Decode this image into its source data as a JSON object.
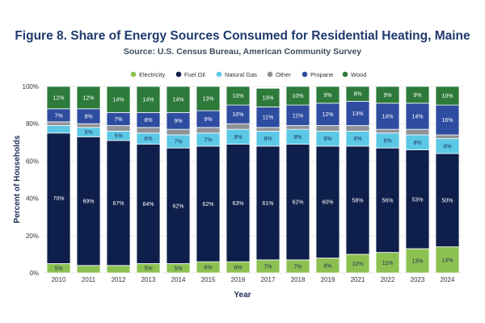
{
  "page": {
    "title": "Figure 8. Share of Energy Sources Consumed for Residential Heating, Maine",
    "subtitle": "Source: U.S. Census Bureau, American Community Survey"
  },
  "chart_data": {
    "type": "bar",
    "stacked": true,
    "title": "Figure 8. Share of Energy Sources Consumed for Residential Heating, Maine",
    "subtitle": "Source: U.S. Census Bureau, American Community Survey",
    "xlabel": "Year",
    "ylabel": "Percent of Households",
    "ylim": [
      0,
      100
    ],
    "yticks": [
      "0%",
      "20%",
      "40%",
      "60%",
      "80%",
      "100%"
    ],
    "legend_position": "top",
    "categories": [
      "2010",
      "2011",
      "2012",
      "2013",
      "2014",
      "2015",
      "2016",
      "2017",
      "2018",
      "2019",
      "2021",
      "2022",
      "2023",
      "2024"
    ],
    "series": [
      {
        "name": "Electricity",
        "color": "#8cc152",
        "values": [
          5,
          4,
          4,
          5,
          5,
          6,
          6,
          7,
          7,
          8,
          10,
          11,
          13,
          14
        ],
        "labels": [
          "5%",
          "",
          "",
          "5%",
          "5%",
          "6%",
          "6%",
          "7%",
          "7%",
          "8%",
          "10%",
          "11%",
          "13%",
          "14%"
        ]
      },
      {
        "name": "Fuel Oil",
        "color": "#0f1f4b",
        "values": [
          70,
          69,
          67,
          64,
          62,
          62,
          63,
          61,
          62,
          60,
          58,
          56,
          53,
          50
        ],
        "labels": [
          "70%",
          "69%",
          "67%",
          "64%",
          "62%",
          "62%",
          "63%",
          "61%",
          "62%",
          "60%",
          "58%",
          "56%",
          "53%",
          "50%"
        ]
      },
      {
        "name": "Natural Gas",
        "color": "#5bc8e6",
        "values": [
          4,
          5,
          5,
          6,
          7,
          7,
          8,
          8,
          8,
          8,
          8,
          8,
          8,
          8
        ],
        "labels": [
          "",
          "5%",
          "5%",
          "6%",
          "7%",
          "7%",
          "8%",
          "8%",
          "8%",
          "8%",
          "8%",
          "8%",
          "8%",
          "8%"
        ]
      },
      {
        "name": "Other",
        "color": "#8f9399",
        "values": [
          2,
          2,
          3,
          3,
          3,
          3,
          3,
          2,
          2,
          3,
          3,
          2,
          3,
          2
        ],
        "labels": [
          "",
          "",
          "",
          "",
          "",
          "",
          "",
          "",
          "",
          "",
          "",
          "",
          "",
          ""
        ]
      },
      {
        "name": "Propane",
        "color": "#2e4da0",
        "values": [
          7,
          8,
          7,
          8,
          9,
          9,
          10,
          11,
          11,
          12,
          13,
          14,
          14,
          16
        ],
        "labels": [
          "7%",
          "8%",
          "7%",
          "8%",
          "9%",
          "9%",
          "10%",
          "11%",
          "11%",
          "12%",
          "13%",
          "14%",
          "14%",
          "16%"
        ]
      },
      {
        "name": "Wood",
        "color": "#2d7a3a",
        "values": [
          12,
          12,
          14,
          14,
          14,
          13,
          10,
          10,
          10,
          9,
          8,
          9,
          9,
          10
        ],
        "labels": [
          "12%",
          "12%",
          "14%",
          "14%",
          "14%",
          "13%",
          "10%",
          "10%",
          "10%",
          "9%",
          "8%",
          "9%",
          "9%",
          "10%"
        ]
      }
    ]
  }
}
